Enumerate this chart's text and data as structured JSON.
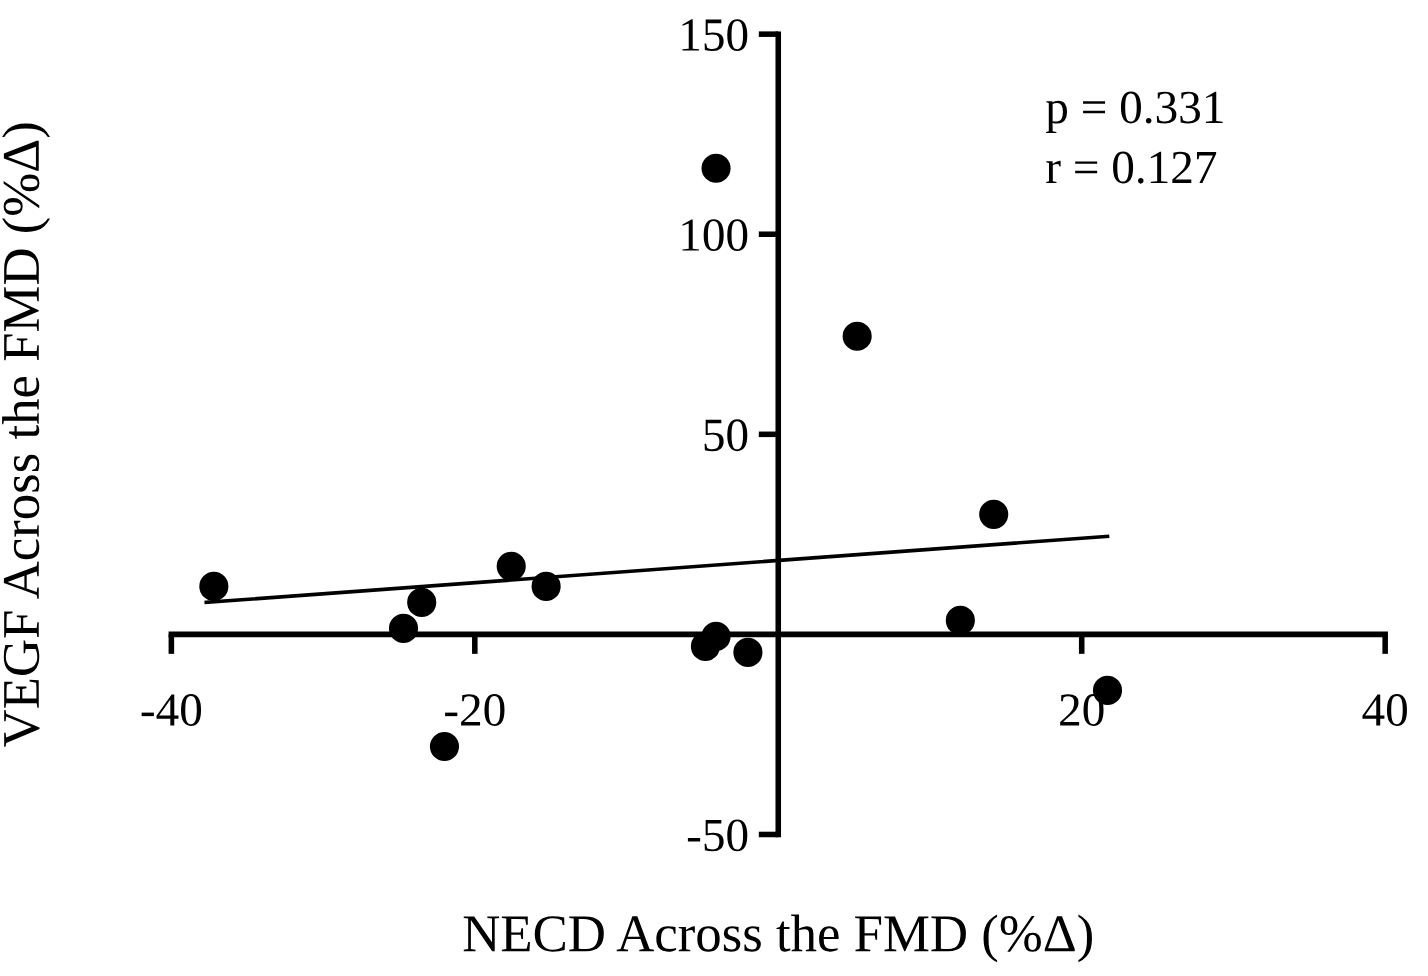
{
  "chart_data": {
    "type": "scatter",
    "xlabel": "NECD Across the FMD (%Δ)",
    "ylabel": "VEGF Across the FMD (%Δ)",
    "annotations": [
      "p = 0.331",
      "r = 0.127"
    ],
    "xlim": [
      -40,
      40
    ],
    "ylim": [
      -50,
      150
    ],
    "xticks": [
      -40,
      -20,
      20,
      40
    ],
    "yticks": [
      -50,
      50,
      100,
      150
    ],
    "grid": false,
    "legend": false,
    "series": [
      {
        "marker": "circle",
        "color": "#000000",
        "x": [
          -37.2,
          -23.5,
          -24.7,
          -17.6,
          -15.3,
          -22.0,
          -4.1,
          -4.8,
          -4.1,
          -2.0,
          5.2,
          12.0,
          14.2,
          21.7
        ],
        "values": [
          12,
          8,
          1.5,
          17,
          12,
          -28,
          116.5,
          -3,
          -0.5,
          -4.5,
          74.5,
          3.5,
          30,
          -14
        ]
      },
      {
        "type": "line",
        "color": "#000000",
        "x": [
          -37.7,
          21.7
        ],
        "values": [
          8,
          24.5
        ]
      }
    ]
  }
}
